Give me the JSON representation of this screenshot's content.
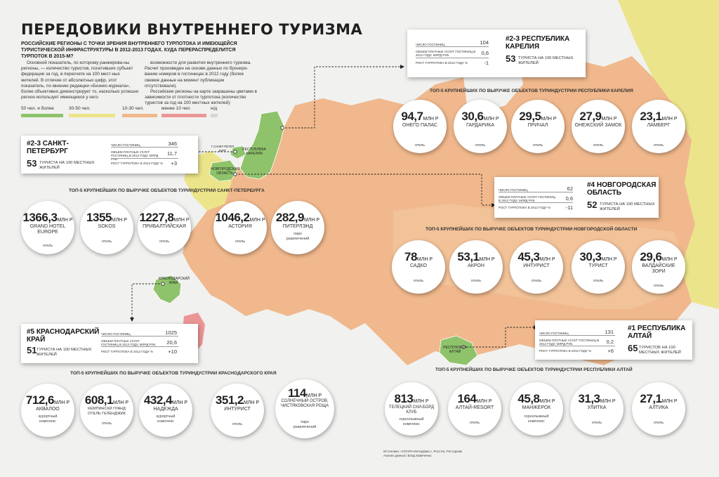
{
  "header": {
    "title": "ПЕРЕДОВИКИ ВНУТРЕННЕГО ТУРИЗМА",
    "subtitle": "РОССИЙСКИЕ РЕГИОНЫ С ТОЧКИ ЗРЕНИЯ ВНУТРЕННЕГО ТУРПОТОКА И ИМЕЮЩЕЙСЯ ТУРИСТИЧЕСКОЙ ИНФРАСТРУКТУРЫ В 2012-2013 ГОДАХ. КУДА ПЕРЕРАСПРЕДЕЛИТСЯ ТУРПОТОК В 2015-М?",
    "intro_col1": "Основной показатель, по которому ранжирова-ны регионы, — количество туристов, посетивших субъект федерации за год, в пересчете на 100 мест-ных жителей. В отличие от абсолютных цифр, этот показатель, по мнению редакции «Бизнес-журнала», более объективно демонстрирует то, насколько успешно регион использует имеющиеся у него",
    "intro_col2a": "возможности для развития внутреннего туризма. Расчет произведен на основе данных по брониро-ванию номеров в гостиницах в 2012 году (более свежие данные на момент публикации отсутствовали).",
    "intro_col2b": "Российские регионы на карте закрашены цветами в зависимости от плотности турпотока (количество туристов за год на 100 местных жителей):"
  },
  "legend": [
    {
      "label": "50 чел. и более",
      "color": "#8fc36b"
    },
    {
      "label": "30-50 чел.",
      "color": "#ece48a"
    },
    {
      "label": "10-30 чел.",
      "color": "#f0b88c"
    },
    {
      "label": "менее 10 чел.",
      "color": "#eb9696"
    },
    {
      "label": "н/д",
      "color": "#d6d6d6"
    }
  ],
  "row_labels": {
    "hotels": "ЧИСЛО ГОСТИНИЦ",
    "revenue": "ОБЪЕМ ПЛАТНЫХ УСЛУГ ГОСТИНИЦ В 2012 ГОДУ, МЛРД РУБ.",
    "revenue_short": "ОБЪЕМ ПЛАТНЫХ УСЛУГ ГОСТИНИЦ В 2012 ГОДУ, МЛРД РУБ.",
    "growth": "РОСТ ТУРПОТОКА В 2012 ГОДУ %",
    "per100": "ТУРИСТА НА 100 МЕСТНЫХ ЖИТЕЛЕЙ",
    "per100_alt": "ТУРИСТОВ НА 100 МЕСТНЫХ ЖИТЕЛЕЙ"
  },
  "cards": {
    "karelia": {
      "rank": "#2-3 РЕСПУБЛИКА КАРЕЛИЯ",
      "hotels": "104",
      "revenue": "0,6",
      "growth": "-1",
      "tourists": "53"
    },
    "spb": {
      "rank": "#2-3 САНКТ-ПЕТЕРБУРГ",
      "hotels": "346",
      "revenue": "11,7",
      "growth": "+3",
      "tourists": "53"
    },
    "novgorod": {
      "rank": "#4 НОВГОРОДСКАЯ ОБЛАСТЬ",
      "hotels": "62",
      "revenue": "0,6",
      "growth": "-11",
      "tourists": "52"
    },
    "krasnodar": {
      "rank": "#5 КРАСНОДАРСКИЙ КРАЙ",
      "hotels": "1025",
      "revenue": "20,6",
      "growth": "+10",
      "tourists": "51"
    },
    "altai": {
      "rank": "#1 РЕСПУБЛИКА АЛТАЙ",
      "hotels": "131",
      "revenue": "0,2",
      "growth": "+6",
      "tourists": "65"
    }
  },
  "sections": {
    "karelia": {
      "heading": "ТОП-5 КРУПНЕЙШИХ ПО ВЫРУЧКЕ ОБЪЕКТОВ ТУРИНДУСТРИИ РЕСПУБЛИКИ КАРЕЛИЯ",
      "items": [
        {
          "value": "94,7",
          "unit": "МЛН Р",
          "name": "ОНЕГО ПАЛАС",
          "type": "отель"
        },
        {
          "value": "30,6",
          "unit": "МЛН Р",
          "name": "ГАРДАРИКА",
          "type": "отель"
        },
        {
          "value": "29,5",
          "unit": "МЛН Р",
          "name": "ПРИЧАЛ",
          "type": "отель"
        },
        {
          "value": "27,9",
          "unit": "МЛН Р",
          "name": "ОНЕЖСКИЙ ЗАМОК",
          "type": "отель"
        },
        {
          "value": "23,1",
          "unit": "МЛН Р",
          "name": "ЛАМБЕРГ",
          "type": "отель"
        }
      ]
    },
    "spb": {
      "heading": "ТОП-5 КРУПНЕЙШИХ ПО ВЫРУЧКЕ ОБЪЕКТОВ ТУРИНДУСТРИИ САНКТ-ПЕТЕРБУРГА",
      "items": [
        {
          "value": "1366,3",
          "unit": "МЛН Р",
          "name": "GRAND HOTEL EUROPE",
          "type": "отель"
        },
        {
          "value": "1355",
          "unit": "МЛН Р",
          "name": "SOKOS",
          "type": "отель"
        },
        {
          "value": "1227,8",
          "unit": "МЛН Р",
          "name": "ПРИБАЛТИЙСКАЯ",
          "type": "отель"
        },
        {
          "value": "1046,2",
          "unit": "МЛН Р",
          "name": "АСТОРИЯ",
          "type": "отель"
        },
        {
          "value": "282,9",
          "unit": "МЛН Р",
          "name": "ПИТЕРЛЭНД",
          "type": "парк развлечений"
        }
      ]
    },
    "novgorod": {
      "heading": "ТОП-5 КРУПНЕЙШИХ ПО ВЫРУЧКЕ ОБЪЕКТОВ ТУРИНДУСТРИИ НОВГОРОДСКОЙ ОБЛАСТИ",
      "items": [
        {
          "value": "78",
          "unit": "МЛН Р",
          "name": "САДКО",
          "type": "отель"
        },
        {
          "value": "53,1",
          "unit": "МЛН Р",
          "name": "АКРОН",
          "type": "отель"
        },
        {
          "value": "45,3",
          "unit": "МЛН Р",
          "name": "ИНТУРИСТ",
          "type": "отель"
        },
        {
          "value": "30,3",
          "unit": "МЛН Р",
          "name": "ТУРИСТ",
          "type": "отель"
        },
        {
          "value": "29,6",
          "unit": "МЛН Р",
          "name": "ВАЛДАЙСКИЕ ЗОРИ",
          "type": "отель"
        }
      ]
    },
    "krasnodar": {
      "heading": "ТОП-5 КРУПНЕЙШИХ ПО ВЫРУЧКЕ ОБЪЕКТОВ ТУРИНДУСТРИИ КРАСНОДАРСКОГО КРАЯ",
      "items": [
        {
          "value": "712,6",
          "unit": "МЛН Р",
          "name": "АКВАЛОО",
          "type": "курортный комплекс"
        },
        {
          "value": "608,1",
          "unit": "МЛН Р",
          "name": "КЕМПИНСКИ ГРАНД ОТЕЛЬ ГЕЛЕНДЖИК",
          "type": "отель"
        },
        {
          "value": "432,4",
          "unit": "МЛН Р",
          "name": "НАДЕЖДА",
          "type": "курортный комплекс"
        },
        {
          "value": "351,2",
          "unit": "МЛН Р",
          "name": "ИНТУРИСТ",
          "type": "отель"
        },
        {
          "value": "114",
          "unit": "МЛН Р",
          "name": "СОЛНЕЧНЫЙ ОСТРОВ, ЧИСТЯКОВСКАЯ РОЩА",
          "type": "парк развлечений"
        }
      ]
    },
    "altai": {
      "heading": "ТОП-5 КРУПНЕЙШИХ ПО ВЫРУЧКЕ ОБЪЕКТОВ ТУРИНДУСТРИИ РЕСПУБЛИКИ АЛТАЙ",
      "items": [
        {
          "value": "813",
          "unit": "МЛН Р",
          "name": "ТЕЛЕЦКИЙ СКИ-БОРД КЛУБ",
          "type": "горнолыжный комплекс"
        },
        {
          "value": "164",
          "unit": "МЛН Р",
          "name": "АЛТАЙ-RESORT",
          "type": "отель"
        },
        {
          "value": "45,8",
          "unit": "МЛН Р",
          "name": "МАНЖЕРОК",
          "type": "горнолыжный комплекс"
        },
        {
          "value": "31,3",
          "unit": "МЛН Р",
          "name": "УЛИТКА",
          "type": "отель"
        },
        {
          "value": "27,1",
          "unit": "МЛН Р",
          "name": "АЛТИКА",
          "type": "отель"
        }
      ]
    }
  },
  "map_labels": {
    "karelia": "РЕСПУБЛИКА КАРЕЛИЯ",
    "spb": "Г САНКТ-ПЕТЕР БУРГ",
    "novgorod": "НОВГОРОДСКАЯ ОБЛАСТЬ",
    "krasnodar": "КРАСНОДАРСКИЙ КРАЙ",
    "altai": "РЕСПУБЛИКА АЛТАЙ"
  },
  "source": {
    "line1": "Источники: «СПАРК-Интерфакс», Росстат, Ростуризм",
    "line2": "Анализ данных: Влад Кавиченко"
  }
}
